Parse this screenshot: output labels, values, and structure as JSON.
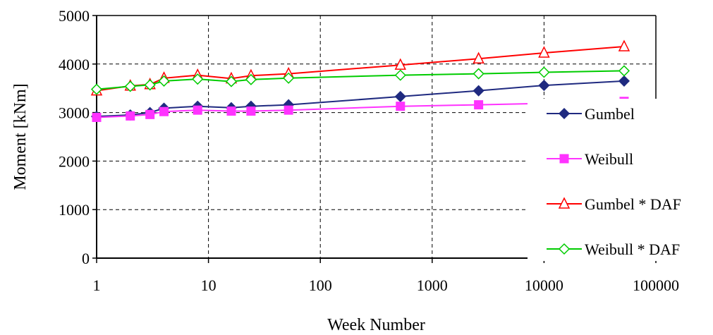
{
  "chart_data": {
    "type": "line",
    "title": "",
    "xlabel": "Week Number",
    "ylabel": "Moment [kNm]",
    "x_scale": "log",
    "xlim": [
      1,
      100000
    ],
    "ylim": [
      0,
      5000
    ],
    "x_ticks": [
      "1",
      "10",
      "100",
      "1000",
      "10000",
      "100000"
    ],
    "y_ticks": [
      "0",
      "1000",
      "2000",
      "3000",
      "4000",
      "5000"
    ],
    "grid": true,
    "legend_position": "right",
    "series": [
      {
        "name": "Gumbel",
        "color": "#1f2a80",
        "marker": "diamond-filled",
        "x": [
          1,
          2,
          3,
          4,
          8,
          16,
          24,
          52,
          520,
          2600,
          10000,
          52000
        ],
        "y": [
          2920,
          2950,
          3000,
          3090,
          3130,
          3100,
          3130,
          3160,
          3330,
          3450,
          3560,
          3650
        ],
        "marker_x": [
          1,
          2,
          3,
          4,
          8,
          16,
          24,
          52,
          520,
          2600,
          10000,
          52000
        ]
      },
      {
        "name": "Weibull",
        "color": "#ff33ff",
        "marker": "square-filled",
        "x": [
          1,
          2,
          3,
          4,
          8,
          16,
          24,
          52,
          520,
          2600,
          10000,
          52000
        ],
        "y": [
          2900,
          2930,
          2960,
          3020,
          3050,
          3030,
          3030,
          3050,
          3130,
          3160,
          3190,
          3230
        ],
        "marker_x": [
          1,
          2,
          3,
          4,
          8,
          16,
          24,
          52,
          520,
          2600,
          10000,
          52000
        ]
      },
      {
        "name": "Gumbel * DAF",
        "color": "#ff0000",
        "marker": "triangle-open",
        "x": [
          1,
          2,
          3,
          4,
          8,
          16,
          24,
          52,
          520,
          2600,
          10000,
          52000
        ],
        "y": [
          3450,
          3550,
          3580,
          3710,
          3770,
          3700,
          3760,
          3800,
          3980,
          4110,
          4230,
          4360
        ],
        "marker_x": [
          1,
          2,
          3,
          4,
          8,
          16,
          24,
          52,
          520,
          2600,
          10000,
          52000
        ]
      },
      {
        "name": "Weibull * DAF",
        "color": "#00cc00",
        "marker": "diamond-open",
        "x": [
          1,
          2,
          3,
          4,
          8,
          16,
          24,
          52,
          520,
          2600,
          10000,
          52000
        ],
        "y": [
          3480,
          3540,
          3570,
          3650,
          3690,
          3640,
          3680,
          3710,
          3770,
          3800,
          3830,
          3860
        ],
        "marker_x": [
          1,
          2,
          3,
          4,
          8,
          16,
          24,
          52,
          520,
          2600,
          10000,
          52000
        ]
      }
    ]
  }
}
